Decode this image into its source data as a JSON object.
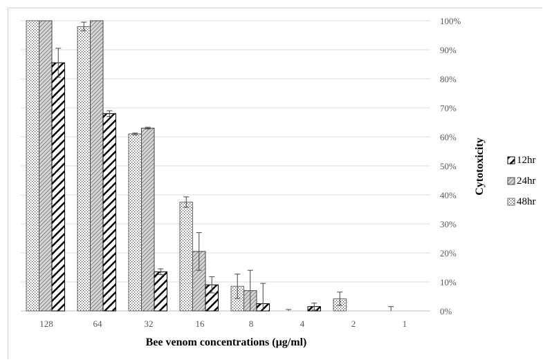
{
  "chart_data": {
    "type": "bar",
    "xlabel": "Bee venom concentrations (µg/ml)",
    "ylabel": "Cytotoxicity",
    "categories": [
      "128",
      "64",
      "32",
      "16",
      "8",
      "4",
      "2",
      "1"
    ],
    "y_ticks": [
      "0%",
      "10%",
      "20%",
      "30%",
      "40%",
      "50%",
      "60%",
      "70%",
      "80%",
      "90%",
      "100%"
    ],
    "ylim": [
      0,
      100
    ],
    "y_axis_position": "right",
    "grid": true,
    "legend_position": "right",
    "series": [
      {
        "name": "48hr",
        "pattern": "dots",
        "values": [
          100,
          98,
          61,
          37.5,
          8.5,
          0,
          4.2,
          0
        ],
        "errors": [
          0,
          1.5,
          0.3,
          1.8,
          4.2,
          0.5,
          2.3,
          1.5
        ]
      },
      {
        "name": "24hr",
        "pattern": "light-diagonal",
        "values": [
          100,
          100,
          63,
          20.5,
          7,
          0,
          0,
          0
        ],
        "errors": [
          0,
          0,
          0.3,
          6.5,
          7,
          0,
          0,
          0
        ]
      },
      {
        "name": "12hr",
        "pattern": "bold-diagonal",
        "values": [
          85.5,
          68,
          13.5,
          9,
          2.5,
          1.5,
          0,
          0
        ],
        "errors": [
          5,
          1,
          1,
          2.8,
          7,
          1.2,
          0,
          0
        ]
      }
    ],
    "legend_order": [
      "12hr",
      "24hr",
      "48hr"
    ]
  }
}
